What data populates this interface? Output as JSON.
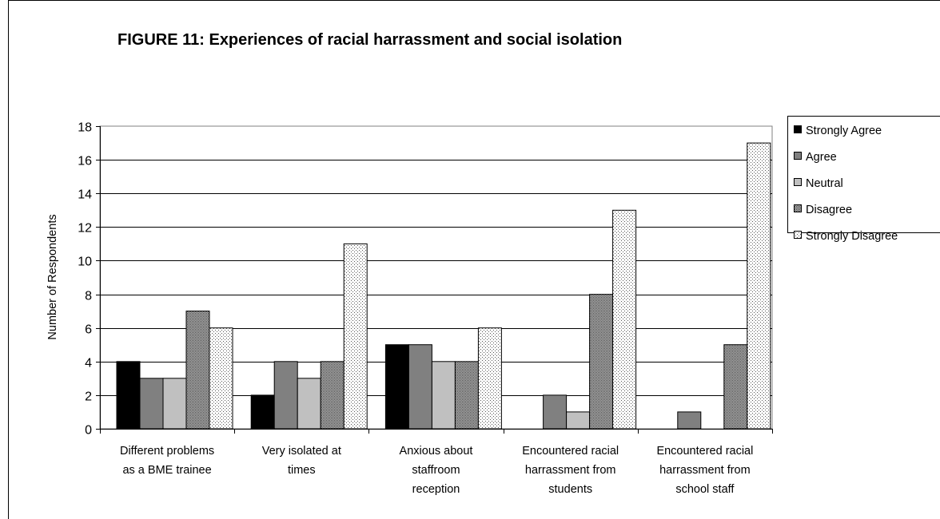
{
  "chart_data": {
    "type": "bar",
    "title": "FIGURE 11: Experiences of racial harrassment and social isolation",
    "xlabel": "",
    "ylabel": "Number of Respondents",
    "ylim": [
      0,
      18
    ],
    "yticks": [
      "0",
      "2",
      "4",
      "6",
      "8",
      "10",
      "12",
      "14",
      "16",
      "18"
    ],
    "grid": true,
    "legend_position": "right",
    "categories": [
      [
        "Different problems",
        "as a BME trainee"
      ],
      [
        "Very isolated at",
        "times"
      ],
      [
        "Anxious about",
        "staffroom",
        "reception"
      ],
      [
        "Encountered racial",
        "harrassment from",
        "students"
      ],
      [
        "Encountered racial",
        "harrassment from",
        "school staff"
      ]
    ],
    "series": [
      {
        "name": "Strongly Agree",
        "values": [
          4,
          2,
          5,
          0,
          0
        ],
        "pattern": "solid-black"
      },
      {
        "name": "Agree",
        "values": [
          3,
          4,
          5,
          2,
          1
        ],
        "pattern": "solid-dark-gray"
      },
      {
        "name": "Neutral",
        "values": [
          3,
          3,
          4,
          1,
          0
        ],
        "pattern": "solid-light-gray"
      },
      {
        "name": "Disagree",
        "values": [
          7,
          4,
          4,
          8,
          5
        ],
        "pattern": "crosshatch"
      },
      {
        "name": "Strongly Disagree",
        "values": [
          6,
          11,
          6,
          13,
          17
        ],
        "pattern": "dotted"
      }
    ]
  }
}
